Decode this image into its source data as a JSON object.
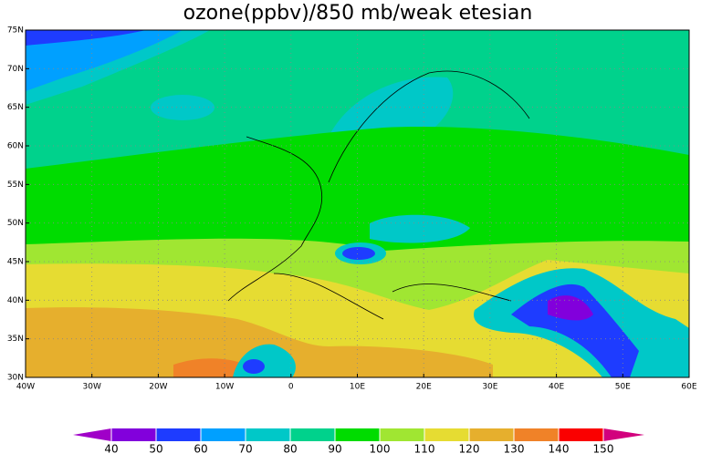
{
  "title": "ozone(ppbv)/850 mb/weak etesian",
  "x_axis": {
    "ticks": [
      "40W",
      "30W",
      "20W",
      "10W",
      "0",
      "10E",
      "20E",
      "30E",
      "40E",
      "50E",
      "60E"
    ]
  },
  "y_axis": {
    "ticks": [
      "30N",
      "35N",
      "40N",
      "45N",
      "50N",
      "55N",
      "60N",
      "65N",
      "70N",
      "75N"
    ]
  },
  "colorbar": {
    "levels": [
      40,
      50,
      60,
      70,
      80,
      90,
      100,
      110,
      120,
      130,
      140,
      150
    ],
    "colors": [
      "#8200dc",
      "#1e3cff",
      "#00a0ff",
      "#00c8c8",
      "#00d28c",
      "#00dc00",
      "#a0e632",
      "#e6dc32",
      "#e6af2d",
      "#f08228",
      "#fa0000"
    ],
    "under_color": "#a000c8",
    "over_color": "#d2007d"
  }
}
